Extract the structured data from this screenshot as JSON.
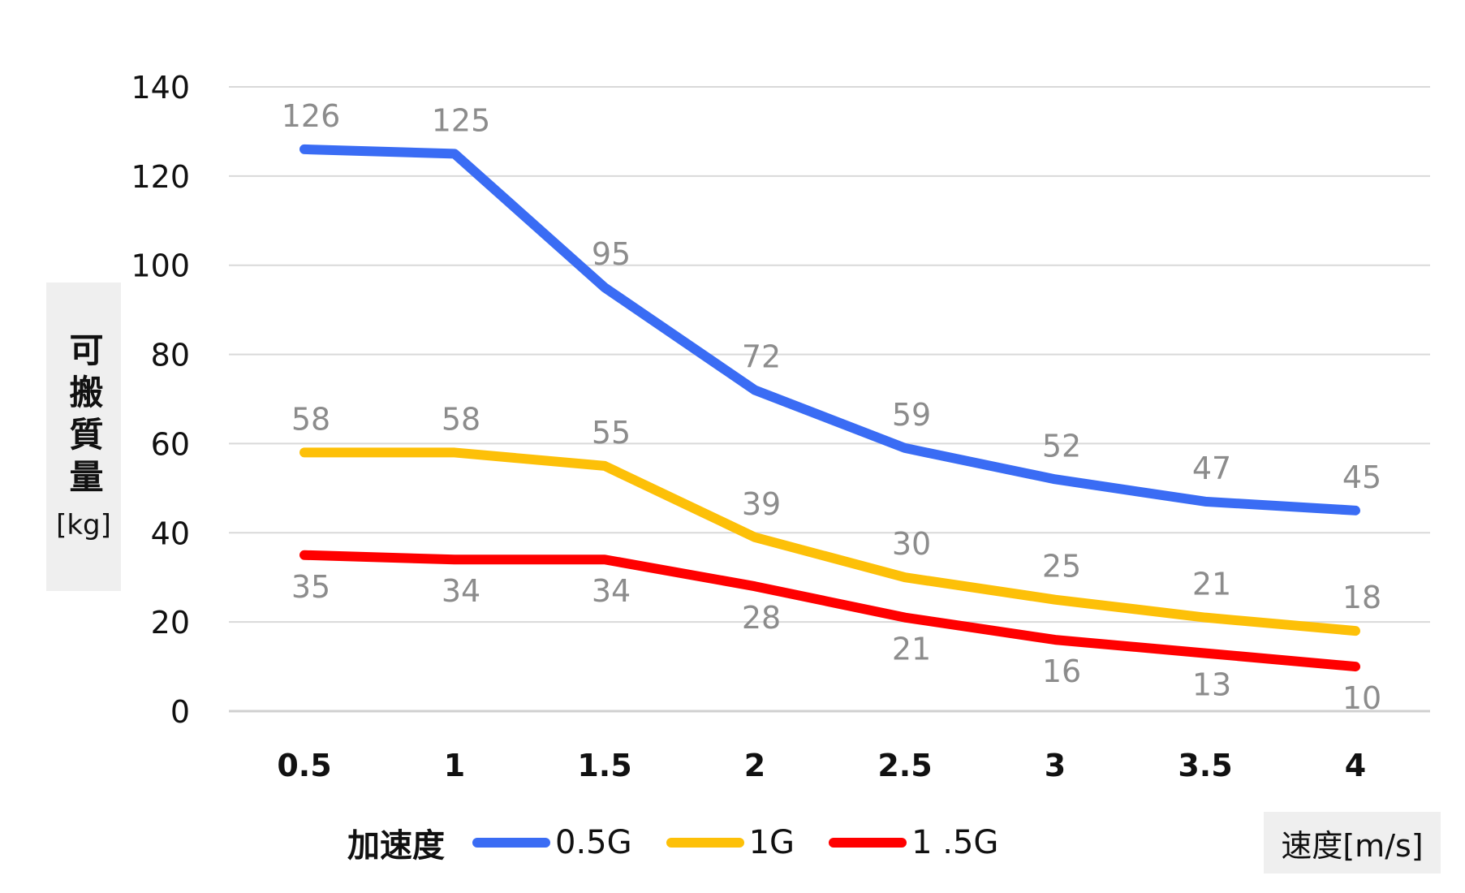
{
  "chart_data": {
    "type": "line",
    "x": [
      0.5,
      1,
      1.5,
      2,
      2.5,
      3,
      3.5,
      4
    ],
    "x_tick_labels": [
      "0.5",
      "1",
      "1.5",
      "2",
      "2.5",
      "3",
      "3.5",
      "4"
    ],
    "y_ticks": [
      0,
      20,
      40,
      60,
      80,
      100,
      120,
      140
    ],
    "ylim": [
      0,
      140
    ],
    "grid": true,
    "ylabel": "可搬質量",
    "ylabel_unit": "[kg]",
    "xlabel": "速度[m/s]",
    "legend_title": "加速度",
    "legend_position": "bottom",
    "series": [
      {
        "name": "0.5G",
        "color": "#3a6cf4",
        "values": [
          126,
          125,
          95,
          72,
          59,
          52,
          47,
          45
        ],
        "label_position": "above"
      },
      {
        "name": "1G",
        "color": "#fdc008",
        "values": [
          58,
          58,
          55,
          39,
          30,
          25,
          21,
          18
        ],
        "label_position": "above"
      },
      {
        "name": "1 .5G",
        "color": "#ff0000",
        "values": [
          35,
          34,
          34,
          28,
          21,
          16,
          13,
          10
        ],
        "label_position": "below"
      }
    ]
  }
}
